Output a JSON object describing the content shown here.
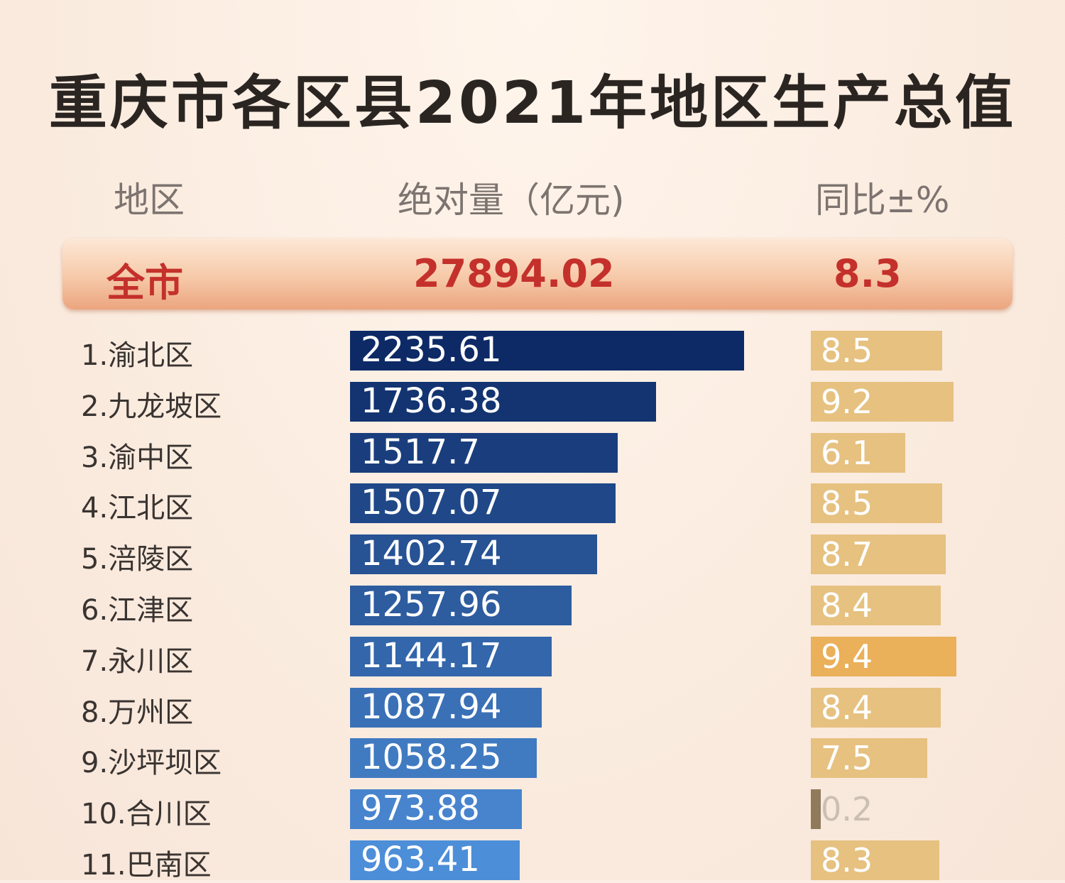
{
  "title": "重庆市各区县2021年地区生产总值",
  "headers": {
    "region": "地区",
    "gdp": "绝对量（亿元)",
    "yoy": "同比±%"
  },
  "total": {
    "label": "全市",
    "gdp": "27894.02",
    "yoy": "8.3"
  },
  "colors": {
    "gdp_bar_darkest": "#0d2a66",
    "gdp_bar_lightest": "#4d8ed8",
    "yoy_bar": "#e6c180",
    "yoy_bar_highlight": "#eab05a",
    "total_text": "#c4302b"
  },
  "chart_data": {
    "type": "bar",
    "title": "重庆市各区县2021年地区生产总值",
    "xlabel": "",
    "ylabel": "",
    "categories": [
      "1.渝北区",
      "2.九龙坡区",
      "3.渝中区",
      "4.江北区",
      "5.涪陵区",
      "6.江津区",
      "7.永川区",
      "8.万州区",
      "9.沙坪坝区",
      "10.合川区",
      "11.巴南区"
    ],
    "series": [
      {
        "name": "绝对量（亿元)",
        "values": [
          2235.61,
          1736.38,
          1517.7,
          1507.07,
          1402.74,
          1257.96,
          1144.17,
          1087.94,
          1058.25,
          973.88,
          963.41
        ],
        "labels": [
          "2235.61",
          "1736.38",
          "1517.7",
          "1507.07",
          "1402.74",
          "1257.96",
          "1144.17",
          "1087.94",
          "1058.25",
          "973.88",
          "963.41"
        ]
      },
      {
        "name": "同比±%",
        "values": [
          8.5,
          9.2,
          6.1,
          8.5,
          8.7,
          8.4,
          9.4,
          8.4,
          7.5,
          0.2,
          8.3
        ],
        "labels": [
          "8.5",
          "9.2",
          "6.1",
          "8.5",
          "8.7",
          "8.4",
          "9.4",
          "8.4",
          "7.5",
          "0.2",
          "8.3"
        ]
      }
    ],
    "legend": "none",
    "grid": false
  }
}
